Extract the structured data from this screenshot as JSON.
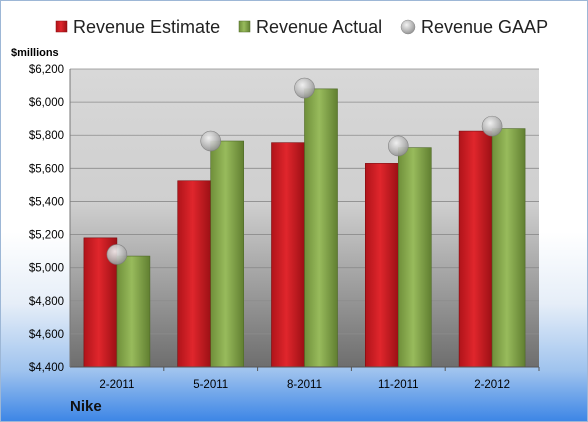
{
  "chart_data": {
    "type": "bar",
    "title": "",
    "ylabel": "$millions",
    "company": "Nike",
    "categories": [
      "2-2011",
      "5-2011",
      "8-2011",
      "11-2011",
      "2-2012"
    ],
    "series": [
      {
        "name": "Revenue Estimate",
        "type": "bar",
        "color": "#d42026",
        "values": [
          5180,
          5525,
          5755,
          5630,
          5825
        ]
      },
      {
        "name": "Revenue Actual",
        "type": "bar",
        "color": "#8aac52",
        "values": [
          5070,
          5765,
          6080,
          5725,
          5840
        ]
      },
      {
        "name": "Revenue GAAP",
        "type": "marker",
        "color": "#b5b5b5",
        "values": [
          5080,
          5765,
          6085,
          5735,
          5855
        ]
      }
    ],
    "ylim": [
      4400,
      6200
    ],
    "yticks": [
      "$4,400",
      "$4,600",
      "$4,800",
      "$5,000",
      "$5,200",
      "$5,400",
      "$5,600",
      "$5,800",
      "$6,000",
      "$6,200"
    ],
    "ytick_values": [
      4400,
      4600,
      4800,
      5000,
      5200,
      5400,
      5600,
      5800,
      6000,
      6200
    ],
    "legend_position": "top",
    "grid": true
  }
}
